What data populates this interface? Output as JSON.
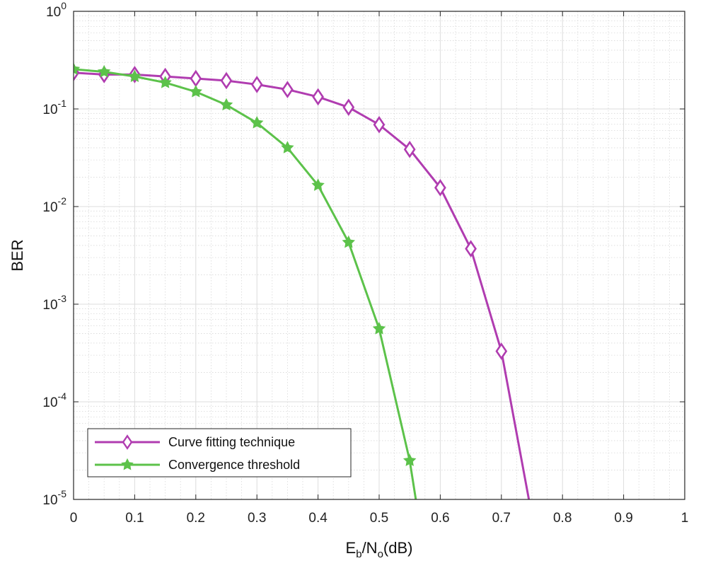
{
  "chart_data": {
    "type": "line",
    "title": "",
    "xlabel": {
      "base": "E",
      "sub1": "b",
      "mid": "/N",
      "sub2": "o",
      "unit": "(dB)"
    },
    "ylabel": "BER",
    "xscale": "linear",
    "yscale": "log",
    "xlim": [
      0,
      1
    ],
    "ylim": [
      1e-05,
      1
    ],
    "grid": true,
    "minor_grid": true,
    "legend_position": "bottom-left",
    "x_ticks": [
      {
        "value": 0,
        "label": "0"
      },
      {
        "value": 0.1,
        "label": "0.1"
      },
      {
        "value": 0.2,
        "label": "0.2"
      },
      {
        "value": 0.3,
        "label": "0.3"
      },
      {
        "value": 0.4,
        "label": "0.4"
      },
      {
        "value": 0.5,
        "label": "0.5"
      },
      {
        "value": 0.6,
        "label": "0.6"
      },
      {
        "value": 0.7,
        "label": "0.7"
      },
      {
        "value": 0.8,
        "label": "0.8"
      },
      {
        "value": 0.9,
        "label": "0.9"
      },
      {
        "value": 1,
        "label": "1"
      }
    ],
    "y_ticks": [
      {
        "exp": 0,
        "base": "10",
        "sup": "0"
      },
      {
        "exp": -1,
        "base": "10",
        "sup": "-1"
      },
      {
        "exp": -2,
        "base": "10",
        "sup": "-2"
      },
      {
        "exp": -3,
        "base": "10",
        "sup": "-3"
      },
      {
        "exp": -4,
        "base": "10",
        "sup": "-4"
      },
      {
        "exp": -5,
        "base": "10",
        "sup": "-5"
      }
    ],
    "series": [
      {
        "name": "Curve fitting technique",
        "color": "#b03cb0",
        "marker": "diamond",
        "x": [
          0,
          0.05,
          0.1,
          0.15,
          0.2,
          0.25,
          0.3,
          0.35,
          0.4,
          0.45,
          0.5,
          0.55,
          0.6,
          0.65,
          0.7,
          0.745
        ],
        "y": [
          0.235,
          0.225,
          0.225,
          0.215,
          0.205,
          0.195,
          0.178,
          0.158,
          0.133,
          0.104,
          0.069,
          0.0385,
          0.0156,
          0.0037,
          0.00033,
          1e-05
        ]
      },
      {
        "name": "Convergence threshold",
        "color": "#5cc24a",
        "marker": "star",
        "x": [
          0,
          0.05,
          0.1,
          0.15,
          0.2,
          0.25,
          0.3,
          0.35,
          0.4,
          0.45,
          0.5,
          0.55,
          0.56
        ],
        "y": [
          0.255,
          0.24,
          0.215,
          0.186,
          0.15,
          0.11,
          0.072,
          0.04,
          0.0165,
          0.0043,
          0.00056,
          2.5e-05,
          1e-05
        ]
      }
    ]
  }
}
